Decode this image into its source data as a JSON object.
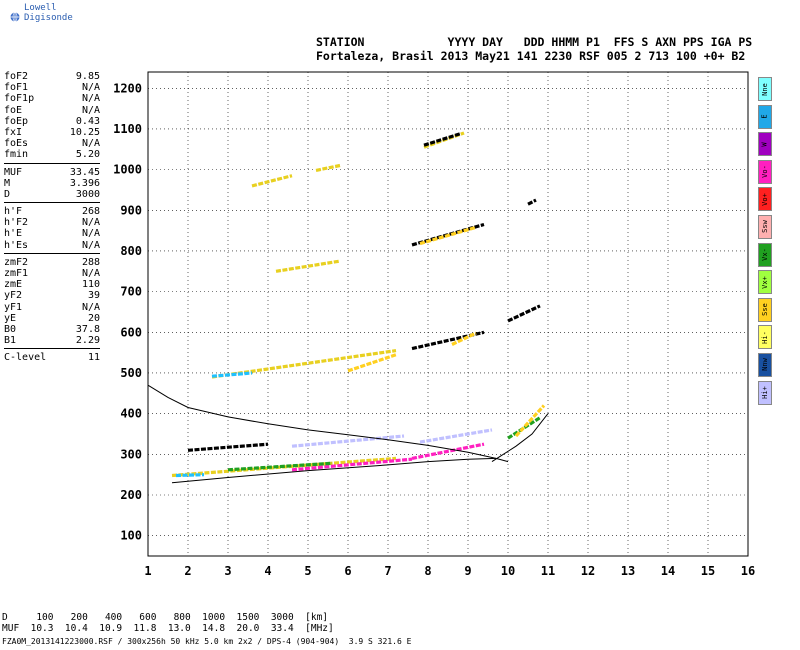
{
  "header": {
    "brand": "Lowell Digisonde",
    "line1": "STATION            YYYY DAY   DDD HHMM P1  FFS S AXN PPS IGA PS",
    "line2": "Fortaleza, Brasil 2013 May21 141 2230 RSF 005 2 713 100 +0+ B2"
  },
  "params": [
    [
      {
        "k": "foF2",
        "v": "9.85"
      },
      {
        "k": "foF1",
        "v": "N/A"
      },
      {
        "k": "foF1p",
        "v": "N/A"
      },
      {
        "k": "foE",
        "v": "N/A"
      },
      {
        "k": "foEp",
        "v": "0.43"
      },
      {
        "k": "fxI",
        "v": "10.25"
      },
      {
        "k": "foEs",
        "v": "N/A"
      },
      {
        "k": "fmin",
        "v": "5.20"
      }
    ],
    [
      {
        "k": "MUF",
        "v": "33.45"
      },
      {
        "k": "M",
        "v": "3.396"
      },
      {
        "k": "D",
        "v": "3000"
      }
    ],
    [
      {
        "k": "h'F",
        "v": "268"
      },
      {
        "k": "h'F2",
        "v": "N/A"
      },
      {
        "k": "h'E",
        "v": "N/A"
      },
      {
        "k": "h'Es",
        "v": "N/A"
      }
    ],
    [
      {
        "k": "zmF2",
        "v": "288"
      },
      {
        "k": "zmF1",
        "v": "N/A"
      },
      {
        "k": "zmE",
        "v": "110"
      },
      {
        "k": "yF2",
        "v": "39"
      },
      {
        "k": "yF1",
        "v": "N/A"
      },
      {
        "k": "yE",
        "v": "20"
      },
      {
        "k": "B0",
        "v": "37.8"
      },
      {
        "k": "B1",
        "v": "2.29"
      }
    ],
    [
      {
        "k": "C-level",
        "v": "11"
      }
    ]
  ],
  "legend": [
    {
      "label": "Nne",
      "color": "#7fffff"
    },
    {
      "label": "E",
      "color": "#20a8e8"
    },
    {
      "label": "W",
      "color": "#a000c0"
    },
    {
      "label": "Vo-",
      "color": "#ff20c0"
    },
    {
      "label": "Vo+",
      "color": "#ff2020"
    },
    {
      "label": "Ssw",
      "color": "#ffb0b0"
    },
    {
      "label": "Vx-",
      "color": "#20a020"
    },
    {
      "label": "Vx+",
      "color": "#a0ff40"
    },
    {
      "label": "Sse",
      "color": "#ffd020"
    },
    {
      "label": "Hi-",
      "color": "#ffff60"
    },
    {
      "label": "Nnw",
      "color": "#1850a0"
    },
    {
      "label": "Hi+",
      "color": "#c0c0ff"
    }
  ],
  "muf_table": {
    "line1": "D     100   200   400   600   800  1000  1500  3000  [km]",
    "line2": "MUF  10.3  10.4  10.9  11.8  13.0  14.8  20.0  33.4  [MHz]"
  },
  "footer": "FZA0M_2013141223000.RSF / 300x256h 50 kHz 5.0 km 2x2 / DPS-4 (904-904)  3.9 S 321.6 E",
  "chart_data": {
    "type": "scatter",
    "xlim": [
      1,
      16
    ],
    "ylim": [
      50,
      1240
    ],
    "x_ticks": [
      1,
      2,
      3,
      4,
      5,
      6,
      7,
      8,
      9,
      10,
      11,
      12,
      13,
      14,
      15,
      16
    ],
    "y_ticks": [
      100,
      200,
      300,
      400,
      500,
      600,
      700,
      800,
      900,
      1000,
      1100,
      1200
    ],
    "grid": "dotted",
    "series": [
      {
        "color": "#e8d020",
        "traces": [
          [
            [
              1.6,
              248
            ],
            [
              7.2,
              290
            ]
          ],
          [
            [
              2.6,
              490
            ],
            [
              7.2,
              555
            ]
          ],
          [
            [
              4.2,
              750
            ],
            [
              5.8,
              775
            ]
          ],
          [
            [
              3.6,
              960
            ],
            [
              4.6,
              985
            ]
          ],
          [
            [
              5.2,
              998
            ],
            [
              5.8,
              1010
            ]
          ],
          [
            [
              7.9,
              1055
            ],
            [
              8.9,
              1090
            ]
          ]
        ]
      },
      {
        "color": "#ff20c0",
        "traces": [
          [
            [
              4.6,
              262
            ],
            [
              7.6,
              288
            ]
          ],
          [
            [
              7.6,
              290
            ],
            [
              9.4,
              325
            ]
          ]
        ]
      },
      {
        "color": "#000000",
        "traces": [
          [
            [
              2.0,
              310
            ],
            [
              4.0,
              325
            ]
          ],
          [
            [
              7.6,
              560
            ],
            [
              9.4,
              600
            ]
          ],
          [
            [
              7.6,
              815
            ],
            [
              9.4,
              865
            ]
          ],
          [
            [
              7.9,
              1060
            ],
            [
              8.8,
              1088
            ]
          ],
          [
            [
              10.0,
              628
            ],
            [
              10.8,
              665
            ]
          ],
          [
            [
              10.5,
              915
            ],
            [
              10.7,
              925
            ]
          ]
        ]
      },
      {
        "color": "#20c0ff",
        "traces": [
          [
            [
              1.7,
              248
            ],
            [
              2.4,
              250
            ]
          ],
          [
            [
              2.6,
              492
            ],
            [
              3.6,
              500
            ]
          ]
        ]
      },
      {
        "color": "#20a020",
        "traces": [
          [
            [
              10.0,
              340
            ],
            [
              10.8,
              390
            ]
          ],
          [
            [
              3.0,
              262
            ],
            [
              5.6,
              278
            ]
          ]
        ]
      },
      {
        "color": "#ffd020",
        "traces": [
          [
            [
              10.2,
              345
            ],
            [
              10.9,
              420
            ]
          ],
          [
            [
              8.6,
              570
            ],
            [
              9.2,
              598
            ]
          ],
          [
            [
              7.8,
              818
            ],
            [
              9.2,
              858
            ]
          ],
          [
            [
              6.0,
              505
            ],
            [
              7.2,
              545
            ]
          ]
        ]
      },
      {
        "color": "#c0c0ff",
        "traces": [
          [
            [
              4.6,
              320
            ],
            [
              7.4,
              345
            ]
          ],
          [
            [
              7.8,
              330
            ],
            [
              9.6,
              360
            ]
          ]
        ]
      }
    ],
    "curves": [
      {
        "name": "",
        "points": [
          [
            1,
            470
          ],
          [
            1.5,
            440
          ],
          [
            2,
            415
          ],
          [
            3,
            392
          ],
          [
            4,
            375
          ],
          [
            5,
            360
          ],
          [
            6,
            348
          ],
          [
            7,
            336
          ],
          [
            8,
            322
          ],
          [
            9,
            305
          ],
          [
            9.7,
            290
          ],
          [
            10,
            282
          ]
        ]
      },
      {
        "name": "",
        "points": [
          [
            1.6,
            230
          ],
          [
            3,
            243
          ],
          [
            5,
            260
          ],
          [
            7,
            274
          ],
          [
            8,
            282
          ],
          [
            9,
            288
          ],
          [
            9.7,
            290
          ]
        ]
      },
      {
        "name": "",
        "points": [
          [
            9.6,
            282
          ],
          [
            9.8,
            295
          ],
          [
            10.2,
            320
          ],
          [
            10.6,
            350
          ],
          [
            11,
            400
          ]
        ]
      }
    ]
  }
}
